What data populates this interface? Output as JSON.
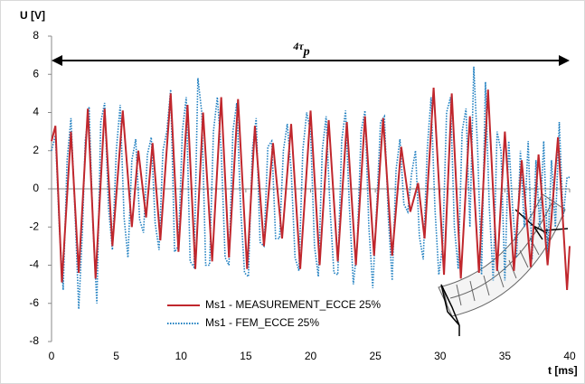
{
  "chart_data": {
    "type": "line",
    "y_label": "U [V]",
    "x_label": "t [ms]",
    "annotation": "4τ",
    "annotation_subscript": "p",
    "xlim": [
      0,
      40
    ],
    "xticks": [
      0,
      5,
      10,
      15,
      20,
      25,
      30,
      35,
      40
    ],
    "ylim": [
      -8,
      8
    ],
    "yticks": [
      -8,
      -6,
      -4,
      -2,
      0,
      2,
      4,
      6,
      8
    ],
    "legend": "lower center",
    "series": [
      {
        "name": "Ms1 - MEASUREMENT_ECCE 25%",
        "color": "#c0272d",
        "style": "solid",
        "x": [
          0,
          0.3,
          0.8,
          1.5,
          2.1,
          2.8,
          3.4,
          4.1,
          4.7,
          5.5,
          6.2,
          6.7,
          7.3,
          7.8,
          8.4,
          9.2,
          9.8,
          10.5,
          11.1,
          11.7,
          12.4,
          13.1,
          13.7,
          14.4,
          15.1,
          15.7,
          16.4,
          17.1,
          17.8,
          18.5,
          19.2,
          20.0,
          20.7,
          21.4,
          22.1,
          22.8,
          23.5,
          24.2,
          24.9,
          25.6,
          26.3,
          27.0,
          27.7,
          28.3,
          28.8,
          29.5,
          30.3,
          30.9,
          31.6,
          32.3,
          33.0,
          33.7,
          34.4,
          35.0,
          35.7,
          36.3,
          37.0,
          37.6,
          38.3,
          39.1,
          39.8,
          40
        ],
        "values": [
          2.5,
          3.3,
          -4.9,
          3.0,
          -4.4,
          4.2,
          -4.7,
          4.2,
          -3.0,
          4.1,
          -2.0,
          2.0,
          -1.5,
          2.4,
          -2.7,
          5.0,
          -3.3,
          4.4,
          -4.2,
          4.0,
          -3.8,
          4.8,
          -3.6,
          4.7,
          -4.2,
          3.3,
          -3.0,
          2.4,
          -2.6,
          3.4,
          -4.2,
          4.1,
          -4.0,
          3.6,
          -3.8,
          3.5,
          -4.0,
          3.8,
          -3.5,
          3.7,
          -3.5,
          2.2,
          -1.2,
          0.3,
          -2.6,
          5.3,
          -4.5,
          5.0,
          -4.7,
          3.8,
          -4.4,
          5.2,
          -4.3,
          3.0,
          -4.3,
          1.5,
          -4.1,
          1.8,
          -4.0,
          2.7,
          -5.3,
          -3.0
        ]
      },
      {
        "name": "Ms1 - FEM_ECCE 25%",
        "color": "#1f7fc0",
        "style": "dotted",
        "x": [
          0,
          0.3,
          0.6,
          0.9,
          1.2,
          1.5,
          1.8,
          2.1,
          2.4,
          2.6,
          2.9,
          3.2,
          3.5,
          3.8,
          4.1,
          4.4,
          4.7,
          5.0,
          5.3,
          5.6,
          5.9,
          6.2,
          6.5,
          6.8,
          7.1,
          7.4,
          7.7,
          8.0,
          8.3,
          8.6,
          8.9,
          9.2,
          9.5,
          9.8,
          10.1,
          10.4,
          10.7,
          11.0,
          11.3,
          11.6,
          11.9,
          12.2,
          12.5,
          12.8,
          13.1,
          13.4,
          13.7,
          14.0,
          14.3,
          14.6,
          14.9,
          15.2,
          15.5,
          15.8,
          16.1,
          16.4,
          16.7,
          17.0,
          17.3,
          17.6,
          17.9,
          18.2,
          18.5,
          18.8,
          19.1,
          19.4,
          19.7,
          20.0,
          20.3,
          20.6,
          20.9,
          21.2,
          21.5,
          21.8,
          22.1,
          22.4,
          22.7,
          23.0,
          23.3,
          23.6,
          23.9,
          24.2,
          24.5,
          24.8,
          25.1,
          25.4,
          25.7,
          26.0,
          26.3,
          26.6,
          26.9,
          27.2,
          27.5,
          27.8,
          28.1,
          28.4,
          28.7,
          29.0,
          29.3,
          29.6,
          29.9,
          30.2,
          30.5,
          30.8,
          31.1,
          31.4,
          31.7,
          32.0,
          32.3,
          32.6,
          32.9,
          33.2,
          33.5,
          33.8,
          34.1,
          34.4,
          34.7,
          35.0,
          35.3,
          35.6,
          35.9,
          36.2,
          36.5,
          36.8,
          37.1,
          37.4,
          37.7,
          38.0,
          38.3,
          38.6,
          38.9,
          39.2,
          39.5,
          39.8,
          40.0
        ],
        "values": [
          2.0,
          2.8,
          -2,
          -5.3,
          1.5,
          3.7,
          -1,
          -6.3,
          -2,
          2.5,
          4.3,
          -2,
          -6.0,
          3.5,
          4.5,
          -1,
          -3.2,
          2,
          4.4,
          -1.5,
          -3.6,
          1.5,
          2.6,
          -1.6,
          -2.3,
          1.8,
          2.7,
          -1.8,
          -3.2,
          2,
          3,
          5.2,
          -3.3,
          -3.0,
          3,
          4.8,
          -3.8,
          -4.1,
          5.8,
          4,
          -4.0,
          -4.0,
          3,
          4.8,
          2,
          -3.6,
          -4.0,
          3,
          4.5,
          -1,
          -4.4,
          -4.6,
          2,
          3.7,
          -2.8,
          -3.0,
          2.2,
          2.5,
          -2.6,
          -2.6,
          2,
          3.4,
          1,
          -3.6,
          -4.3,
          2,
          4,
          3,
          -3,
          -4.6,
          2,
          3.8,
          -1,
          -4.4,
          -4.5,
          2.5,
          4.1,
          -1,
          -5.0,
          -3,
          3,
          4.1,
          -2,
          -5.2,
          -1,
          3.5,
          3.8,
          -1.5,
          -4.8,
          1,
          2.6,
          -0.8,
          -1.2,
          0.8,
          2,
          -2.5,
          -3.7,
          2,
          4.8,
          -1,
          -4.5,
          -3,
          4,
          4.8,
          -2,
          -4.2,
          3,
          4.2,
          -2,
          6.4,
          2,
          -4.5,
          5.6,
          -1,
          -4.8,
          3,
          2,
          -4.8,
          2.5,
          -1,
          -3.6,
          2,
          -2,
          2.5,
          -3.7,
          1.5,
          -2,
          2.5,
          -3.4,
          1.5,
          -2.0,
          3.5,
          -1.5,
          0.6,
          0.6
        ]
      }
    ]
  }
}
